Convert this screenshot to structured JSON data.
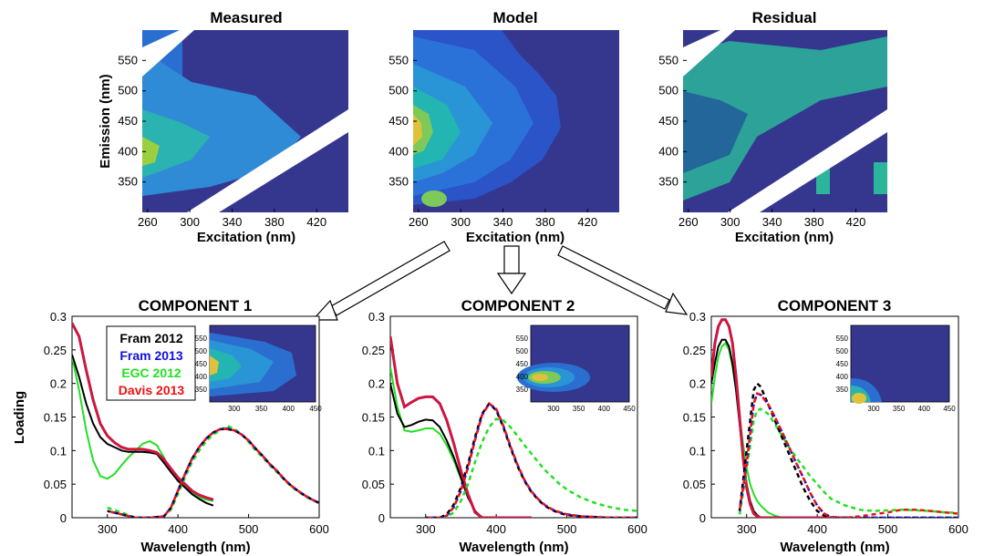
{
  "eem_panels": {
    "type": "heatmap",
    "x_label": "Excitation (nm)",
    "y_label": "Emission (nm)",
    "x_ticks": [
      "260",
      "300",
      "340",
      "380",
      "420"
    ],
    "y_ticks": [
      "550",
      "500",
      "450",
      "400",
      "350"
    ],
    "xlim": [
      255,
      450
    ],
    "ylim": [
      300,
      600
    ],
    "panels": [
      {
        "title": "Measured"
      },
      {
        "title": "Model"
      },
      {
        "title": "Residual"
      }
    ]
  },
  "colors": {
    "fram2012": "#000000",
    "fram2013": "#1010e0",
    "egc2012": "#22e022",
    "davis2013": "#ee1111",
    "model_trace": "#7a1fa8",
    "eem_background": "#35378f",
    "arrow": "#000000"
  },
  "chart_data": [
    {
      "type": "line",
      "title": "COMPONENT 1",
      "xlabel": "Wavelength (nm)",
      "ylabel": "Loading",
      "xlim": [
        250,
        600
      ],
      "ylim": [
        0,
        0.3
      ],
      "x_ticks": [
        "300",
        "400",
        "500",
        "600"
      ],
      "y_ticks": [
        "0",
        "0.05",
        "0.1",
        "0.15",
        "0.2",
        "0.25",
        "0.3"
      ],
      "legend": [
        "Fram 2012",
        "Fram 2013",
        "EGC 2012",
        "Davis 2013"
      ],
      "inset": {
        "x_ticks": [
          "300",
          "350",
          "400",
          "450"
        ],
        "y_ticks": [
          "550",
          "500",
          "450",
          "400",
          "350"
        ]
      },
      "excitation": {
        "x": [
          250,
          260,
          270,
          280,
          290,
          300,
          310,
          320,
          330,
          340,
          350,
          360,
          370,
          380,
          390,
          400,
          410,
          420,
          430,
          440,
          450
        ],
        "fram2012": [
          0.243,
          0.21,
          0.17,
          0.14,
          0.12,
          0.11,
          0.105,
          0.1,
          0.098,
          0.098,
          0.098,
          0.097,
          0.095,
          0.082,
          0.068,
          0.055,
          0.045,
          0.035,
          0.028,
          0.022,
          0.018
        ],
        "fram2013": [
          0.29,
          0.27,
          0.22,
          0.175,
          0.14,
          0.122,
          0.112,
          0.105,
          0.102,
          0.102,
          0.102,
          0.1,
          0.097,
          0.087,
          0.073,
          0.06,
          0.05,
          0.04,
          0.034,
          0.03,
          0.027
        ],
        "egc2012": [
          0.24,
          0.19,
          0.13,
          0.085,
          0.062,
          0.058,
          0.065,
          0.078,
          0.09,
          0.1,
          0.11,
          0.114,
          0.108,
          0.09,
          0.07,
          0.055,
          0.045,
          0.036,
          0.031,
          0.027,
          0.025
        ],
        "davis2013": [
          0.29,
          0.27,
          0.22,
          0.175,
          0.14,
          0.122,
          0.112,
          0.105,
          0.102,
          0.102,
          0.102,
          0.1,
          0.097,
          0.087,
          0.073,
          0.06,
          0.05,
          0.04,
          0.034,
          0.03,
          0.027
        ]
      },
      "emission": {
        "x": [
          300,
          320,
          340,
          360,
          380,
          390,
          400,
          410,
          420,
          430,
          440,
          450,
          460,
          470,
          480,
          490,
          500,
          510,
          520,
          530,
          540,
          550,
          560,
          570,
          580,
          590,
          600
        ],
        "fram2012": [
          0.01,
          0.005,
          0,
          0,
          0.002,
          0.015,
          0.04,
          0.065,
          0.088,
          0.105,
          0.118,
          0.127,
          0.132,
          0.132,
          0.13,
          0.124,
          0.115,
          0.103,
          0.092,
          0.08,
          0.07,
          0.058,
          0.048,
          0.04,
          0.033,
          0.027,
          0.022
        ],
        "fram2013": [
          0.01,
          0.005,
          0,
          0,
          0.002,
          0.015,
          0.04,
          0.065,
          0.088,
          0.105,
          0.118,
          0.127,
          0.132,
          0.133,
          0.13,
          0.124,
          0.115,
          0.103,
          0.092,
          0.08,
          0.07,
          0.058,
          0.048,
          0.04,
          0.033,
          0.027,
          0.022
        ],
        "egc2012": [
          0.015,
          0.008,
          0,
          0,
          0.002,
          0.012,
          0.035,
          0.06,
          0.083,
          0.1,
          0.114,
          0.124,
          0.13,
          0.137,
          0.132,
          0.125,
          0.113,
          0.1,
          0.09,
          0.078,
          0.068,
          0.057,
          0.047,
          0.039,
          0.032,
          0.026,
          0.022
        ],
        "davis2013": [
          0.01,
          0.005,
          0,
          0,
          0.002,
          0.015,
          0.04,
          0.065,
          0.088,
          0.105,
          0.118,
          0.127,
          0.132,
          0.132,
          0.13,
          0.124,
          0.115,
          0.103,
          0.092,
          0.08,
          0.07,
          0.058,
          0.048,
          0.04,
          0.033,
          0.027,
          0.022
        ]
      }
    },
    {
      "type": "line",
      "title": "COMPONENT 2",
      "xlabel": "Wavelength (nm)",
      "ylabel": "",
      "xlim": [
        250,
        600
      ],
      "ylim": [
        0,
        0.3
      ],
      "x_ticks": [
        "300",
        "400",
        "500",
        "600"
      ],
      "y_ticks": [
        "0",
        "0.05",
        "0.1",
        "0.15",
        "0.2",
        "0.25",
        "0.3"
      ],
      "legend": [],
      "inset": {
        "x_ticks": [
          "300",
          "350",
          "400",
          "450"
        ],
        "y_ticks": [
          "550",
          "500",
          "450",
          "400",
          "350"
        ]
      },
      "excitation": {
        "x": [
          250,
          260,
          270,
          280,
          290,
          300,
          310,
          320,
          330,
          340,
          350,
          360,
          370,
          380,
          390,
          400,
          410,
          420,
          430,
          440,
          450
        ],
        "fram2012": [
          0.2,
          0.155,
          0.135,
          0.138,
          0.143,
          0.146,
          0.145,
          0.135,
          0.115,
          0.09,
          0.06,
          0.03,
          0.01,
          0,
          0,
          0,
          0,
          0,
          0,
          0,
          0
        ],
        "fram2013": [
          0.27,
          0.2,
          0.165,
          0.172,
          0.178,
          0.18,
          0.18,
          0.17,
          0.145,
          0.11,
          0.07,
          0.035,
          0.008,
          0,
          0,
          0,
          0,
          0,
          0,
          0,
          0
        ],
        "egc2012": [
          0.225,
          0.165,
          0.13,
          0.128,
          0.13,
          0.133,
          0.133,
          0.125,
          0.108,
          0.085,
          0.058,
          0.03,
          0.01,
          0,
          0,
          0,
          0,
          0,
          0,
          0,
          0
        ],
        "davis2013": [
          0.27,
          0.2,
          0.165,
          0.172,
          0.178,
          0.18,
          0.18,
          0.17,
          0.145,
          0.11,
          0.07,
          0.035,
          0.008,
          0,
          0,
          0,
          0,
          0,
          0,
          0,
          0
        ]
      },
      "emission": {
        "x": [
          300,
          320,
          330,
          340,
          350,
          360,
          370,
          380,
          390,
          400,
          410,
          420,
          430,
          440,
          450,
          460,
          470,
          480,
          490,
          500,
          520,
          540,
          560,
          580,
          600
        ],
        "fram2012": [
          0,
          0,
          0.005,
          0.02,
          0.045,
          0.08,
          0.12,
          0.155,
          0.17,
          0.16,
          0.135,
          0.105,
          0.077,
          0.055,
          0.038,
          0.026,
          0.017,
          0.011,
          0.007,
          0.004,
          0.002,
          0.001,
          0,
          0,
          0
        ],
        "fram2013": [
          0,
          0,
          0.003,
          0.016,
          0.04,
          0.075,
          0.116,
          0.153,
          0.17,
          0.162,
          0.137,
          0.107,
          0.079,
          0.056,
          0.039,
          0.027,
          0.018,
          0.012,
          0.008,
          0.005,
          0.002,
          0.001,
          0,
          0,
          0
        ],
        "egc2012": [
          0,
          0,
          0.001,
          0.008,
          0.025,
          0.05,
          0.083,
          0.113,
          0.135,
          0.147,
          0.145,
          0.135,
          0.122,
          0.108,
          0.095,
          0.082,
          0.07,
          0.06,
          0.05,
          0.042,
          0.03,
          0.022,
          0.016,
          0.012,
          0.01
        ],
        "davis2013": [
          0,
          0,
          0.003,
          0.016,
          0.04,
          0.075,
          0.116,
          0.153,
          0.17,
          0.162,
          0.137,
          0.107,
          0.079,
          0.056,
          0.039,
          0.027,
          0.018,
          0.012,
          0.008,
          0.005,
          0.002,
          0.001,
          0,
          0,
          0
        ]
      }
    },
    {
      "type": "line",
      "title": "COMPONENT 3",
      "xlabel": "Wavelength (nm)",
      "ylabel": "",
      "xlim": [
        250,
        600
      ],
      "ylim": [
        0,
        0.3
      ],
      "x_ticks": [
        "300",
        "400",
        "500",
        "600"
      ],
      "y_ticks": [
        "0",
        "0.05",
        "0.1",
        "0.15",
        "0.2",
        "0.25",
        "0.3"
      ],
      "legend": [],
      "inset": {
        "x_ticks": [
          "300",
          "350",
          "400",
          "450"
        ],
        "y_ticks": [
          "550",
          "500",
          "450",
          "400",
          "350"
        ]
      },
      "excitation": {
        "x": [
          250,
          255,
          260,
          265,
          270,
          275,
          280,
          285,
          290,
          295,
          300,
          305,
          310,
          315,
          320,
          330,
          340,
          350,
          360,
          380,
          400,
          420,
          440,
          450
        ],
        "fram2012": [
          0.2,
          0.23,
          0.255,
          0.265,
          0.265,
          0.255,
          0.23,
          0.19,
          0.14,
          0.09,
          0.05,
          0.025,
          0.01,
          0.004,
          0,
          0,
          0,
          0,
          0,
          0,
          0,
          0,
          0,
          0
        ],
        "fram2013": [
          0.21,
          0.26,
          0.285,
          0.295,
          0.295,
          0.285,
          0.26,
          0.21,
          0.15,
          0.09,
          0.045,
          0.02,
          0.006,
          0.002,
          0,
          0,
          0,
          0,
          0,
          0,
          0,
          0,
          0,
          0
        ],
        "egc2012": [
          0.17,
          0.21,
          0.24,
          0.255,
          0.26,
          0.25,
          0.225,
          0.19,
          0.15,
          0.11,
          0.075,
          0.05,
          0.035,
          0.025,
          0.018,
          0.008,
          0.003,
          0,
          0,
          0,
          0,
          0,
          0,
          0
        ],
        "davis2013": [
          0.21,
          0.26,
          0.285,
          0.295,
          0.295,
          0.285,
          0.26,
          0.21,
          0.15,
          0.09,
          0.045,
          0.02,
          0.006,
          0.002,
          0,
          0,
          0,
          0,
          0,
          0,
          0,
          0,
          0,
          0
        ]
      },
      "emission": {
        "x": [
          290,
          300,
          310,
          315,
          320,
          330,
          340,
          350,
          360,
          370,
          380,
          390,
          400,
          410,
          420,
          440,
          460,
          480,
          500,
          520,
          540,
          560,
          580,
          600
        ],
        "fram2012": [
          0.01,
          0.1,
          0.19,
          0.2,
          0.195,
          0.17,
          0.145,
          0.12,
          0.095,
          0.07,
          0.045,
          0.025,
          0.01,
          0.003,
          0,
          0,
          0,
          0,
          0,
          0,
          0,
          0,
          0,
          0
        ],
        "fram2013": [
          0.01,
          0.08,
          0.17,
          0.185,
          0.183,
          0.17,
          0.15,
          0.128,
          0.105,
          0.082,
          0.06,
          0.037,
          0.018,
          0.006,
          0.001,
          0,
          0,
          0,
          0,
          0,
          0,
          0,
          0,
          0
        ],
        "egc2012": [
          0.005,
          0.07,
          0.145,
          0.16,
          0.162,
          0.155,
          0.14,
          0.122,
          0.105,
          0.09,
          0.076,
          0.062,
          0.05,
          0.038,
          0.028,
          0.018,
          0.012,
          0.01,
          0.011,
          0.012,
          0.011,
          0.01,
          0.008,
          0.007
        ],
        "davis2013": [
          0.01,
          0.08,
          0.17,
          0.185,
          0.183,
          0.17,
          0.15,
          0.128,
          0.105,
          0.082,
          0.06,
          0.037,
          0.018,
          0.006,
          0.001,
          0,
          0.002,
          0.005,
          0.008,
          0.012,
          0.012,
          0.01,
          0.008,
          0.006
        ]
      }
    }
  ]
}
